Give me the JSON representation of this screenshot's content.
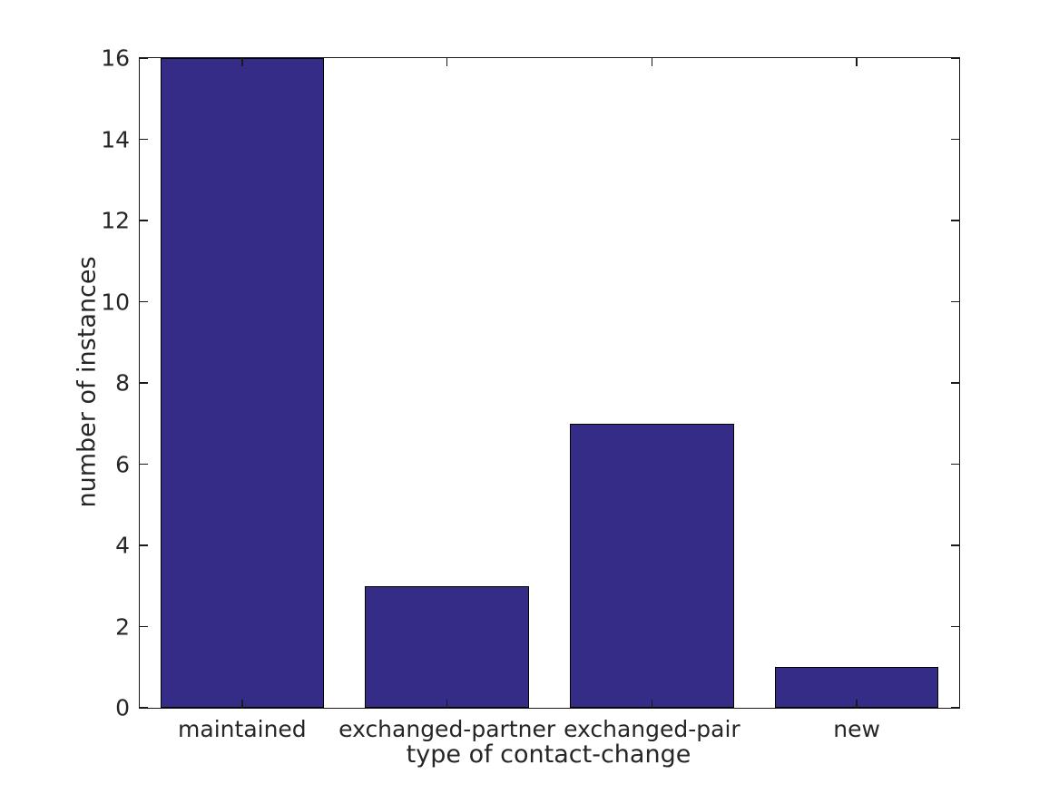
{
  "chart_data": {
    "type": "bar",
    "categories": [
      "maintained",
      "exchanged-partner",
      "exchanged-pair",
      "new"
    ],
    "values": [
      16,
      3,
      7,
      1
    ],
    "title": "",
    "xlabel": "type of contact-change",
    "ylabel": "number of instances",
    "ylim": [
      0,
      16
    ],
    "yticks": [
      0,
      2,
      4,
      6,
      8,
      10,
      12,
      14,
      16
    ],
    "bar_width_frac": 0.8,
    "grid": false,
    "legend_position": "none",
    "colors": {
      "bar_fill": "#352C87",
      "bar_edge": "#000000",
      "axis": "#1a1a1a",
      "text": "#262626",
      "background": "#ffffff"
    }
  }
}
